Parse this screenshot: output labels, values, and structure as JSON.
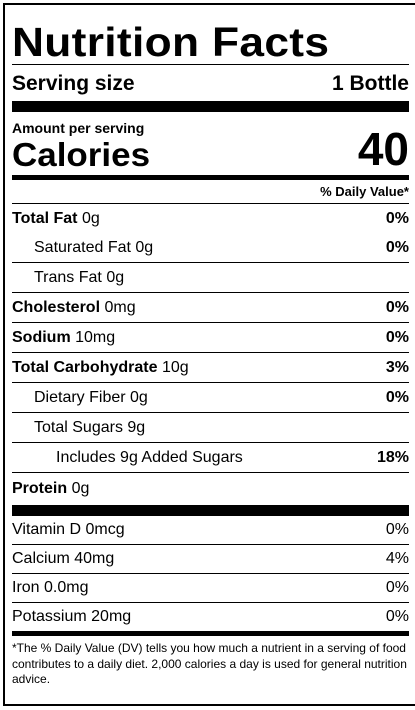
{
  "title": "Nutrition Facts",
  "serving": {
    "label": "Serving size",
    "value": "1 Bottle"
  },
  "amount_per_serving": "Amount per serving",
  "calories": {
    "label": "Calories",
    "value": "40"
  },
  "daily_value_header": "% Daily Value*",
  "nutrients": [
    {
      "name": "Total Fat",
      "amount": "0g",
      "dv": "0%",
      "bold": true,
      "indent": 0
    },
    {
      "name": "Saturated Fat",
      "amount": "0g",
      "dv": "0%",
      "bold": false,
      "indent": 1
    },
    {
      "name": "Trans Fat",
      "amount": "0g",
      "dv": "",
      "bold": false,
      "indent": 1
    },
    {
      "name": "Cholesterol",
      "amount": "0mg",
      "dv": "0%",
      "bold": true,
      "indent": 0
    },
    {
      "name": "Sodium",
      "amount": "10mg",
      "dv": "0%",
      "bold": true,
      "indent": 0
    },
    {
      "name": "Total Carbohydrate",
      "amount": "10g",
      "dv": "3%",
      "bold": true,
      "indent": 0
    },
    {
      "name": "Dietary Fiber",
      "amount": "0g",
      "dv": "0%",
      "bold": false,
      "indent": 1
    },
    {
      "name": "Total Sugars",
      "amount": "9g",
      "dv": "",
      "bold": false,
      "indent": 1
    },
    {
      "name": "Includes 9g Added Sugars",
      "amount": "",
      "dv": "18%",
      "bold": false,
      "indent": 2
    },
    {
      "name": "Protein",
      "amount": "0g",
      "dv": "",
      "bold": true,
      "indent": 0
    }
  ],
  "vitamins": [
    {
      "name": "Vitamin D",
      "amount": "0mcg",
      "dv": "0%"
    },
    {
      "name": "Calcium",
      "amount": "40mg",
      "dv": "4%"
    },
    {
      "name": "Iron",
      "amount": "0.0mg",
      "dv": "0%"
    },
    {
      "name": "Potassium",
      "amount": "20mg",
      "dv": "0%"
    }
  ],
  "footnote": "*The % Daily Value (DV) tells you how much a nutrient in a serving of food contributes to a daily diet. 2,000 calories a day is used for general nutrition advice."
}
